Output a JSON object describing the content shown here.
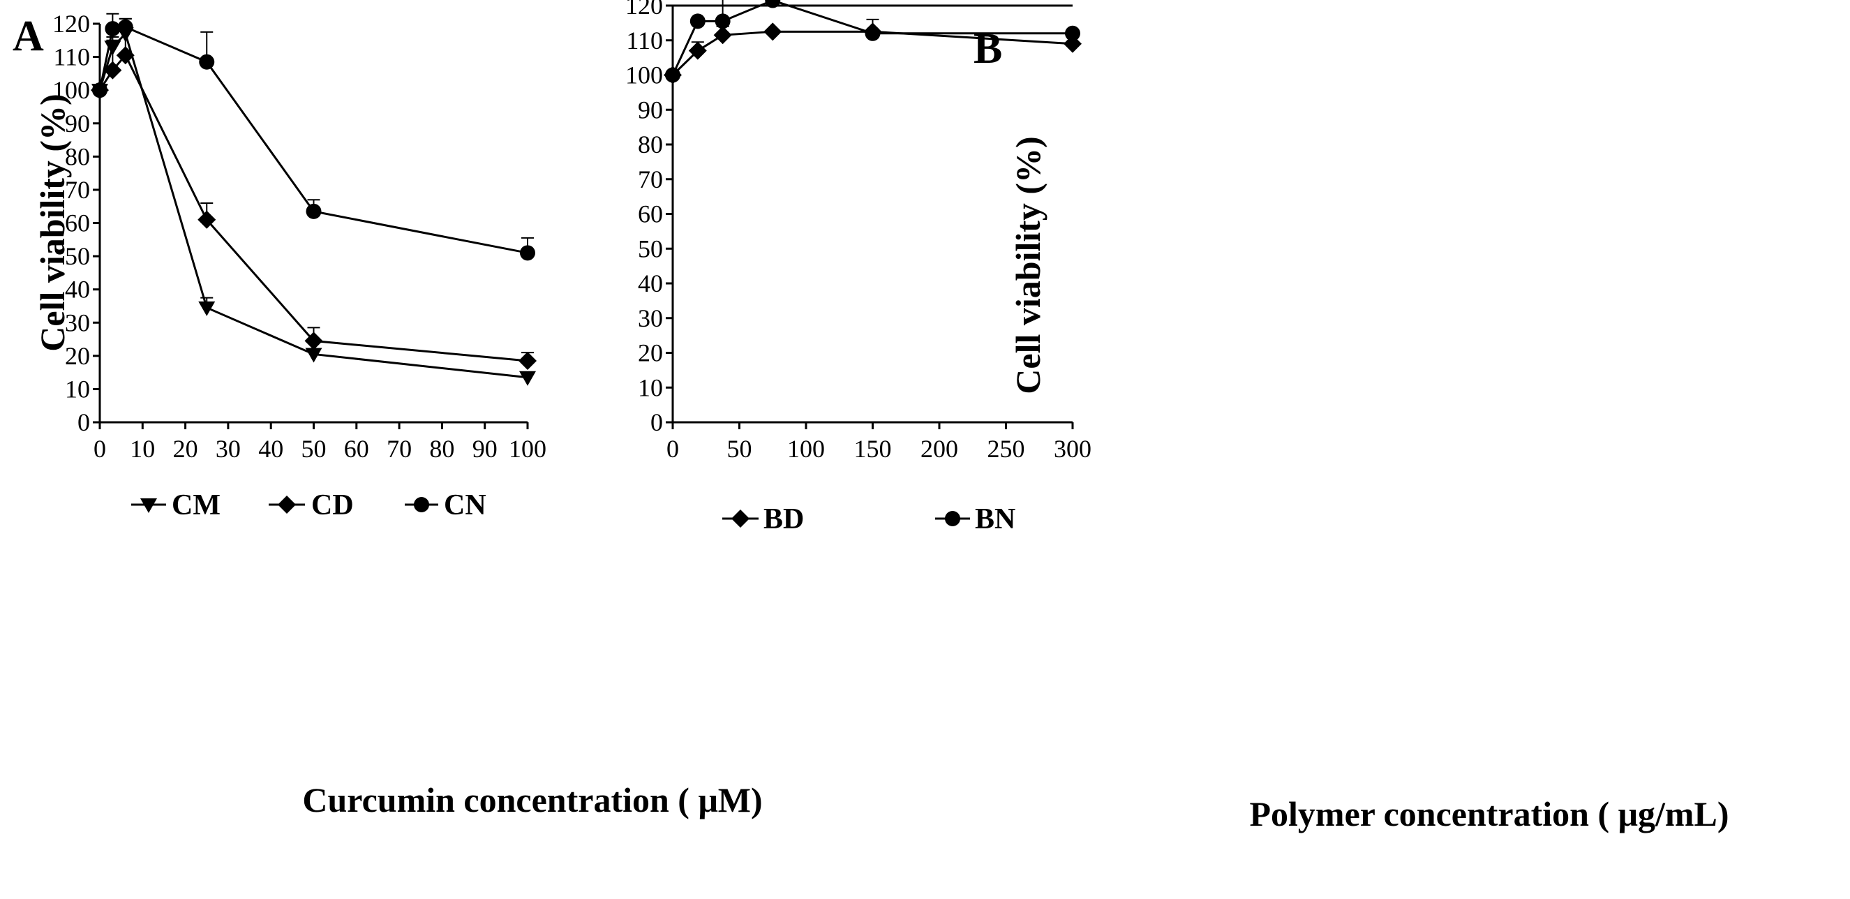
{
  "chart_data": [
    {
      "type": "line",
      "panel_label": "A",
      "xlabel": "Curcumin concentration ( μM)",
      "ylabel": "Cell viability (%)",
      "xlim": [
        0,
        100
      ],
      "ylim": [
        0,
        120
      ],
      "x_ticks": [
        0,
        10,
        20,
        30,
        40,
        50,
        60,
        70,
        80,
        90,
        100
      ],
      "y_ticks": [
        0,
        10,
        20,
        30,
        40,
        50,
        60,
        70,
        80,
        90,
        100,
        110,
        120
      ],
      "legend_position": "bottom",
      "grid": false,
      "series": [
        {
          "name": "CM",
          "marker": "triangle-down",
          "x": [
            0,
            3,
            6,
            25,
            50,
            100
          ],
          "values": [
            100,
            113,
            117,
            34.5,
            20.5,
            13.5
          ],
          "errors": [
            0,
            2,
            3,
            3,
            1,
            1
          ]
        },
        {
          "name": "CD",
          "marker": "diamond",
          "x": [
            0,
            3,
            6,
            25,
            50,
            100
          ],
          "values": [
            100,
            106,
            110.5,
            61,
            24.5,
            18.5
          ],
          "errors": [
            0,
            10,
            11,
            5,
            4,
            2.5
          ]
        },
        {
          "name": "CN",
          "marker": "circle",
          "x": [
            0,
            3,
            6,
            25,
            50,
            100
          ],
          "values": [
            100,
            118.5,
            119,
            108.5,
            63.5,
            51
          ],
          "errors": [
            0,
            4.5,
            2.5,
            9,
            3.5,
            4.5
          ]
        }
      ]
    },
    {
      "type": "line",
      "panel_label": "B",
      "xlabel": "Polymer concentration ( μg/mL)",
      "ylabel": "Cell viability (%)",
      "xlim": [
        0,
        300
      ],
      "ylim": [
        0,
        120
      ],
      "x_ticks": [
        0,
        50,
        100,
        150,
        200,
        250,
        300
      ],
      "y_ticks": [
        0,
        10,
        20,
        30,
        40,
        50,
        60,
        70,
        80,
        90,
        100,
        110,
        120
      ],
      "legend_position": "bottom",
      "grid": false,
      "series": [
        {
          "name": "BD",
          "marker": "diamond",
          "x": [
            0,
            18.75,
            37.5,
            75,
            150,
            300
          ],
          "values": [
            100,
            107,
            111.5,
            112.5,
            112.5,
            109
          ],
          "errors": [
            0,
            2.5,
            2.5,
            0,
            0,
            0
          ]
        },
        {
          "name": "BN",
          "marker": "circle",
          "x": [
            0,
            18.75,
            37.5,
            75,
            150,
            300
          ],
          "values": [
            100,
            115.5,
            115.5,
            121.5,
            112,
            112
          ],
          "errors": [
            0,
            0,
            9.5,
            4,
            4,
            0
          ]
        }
      ]
    }
  ]
}
